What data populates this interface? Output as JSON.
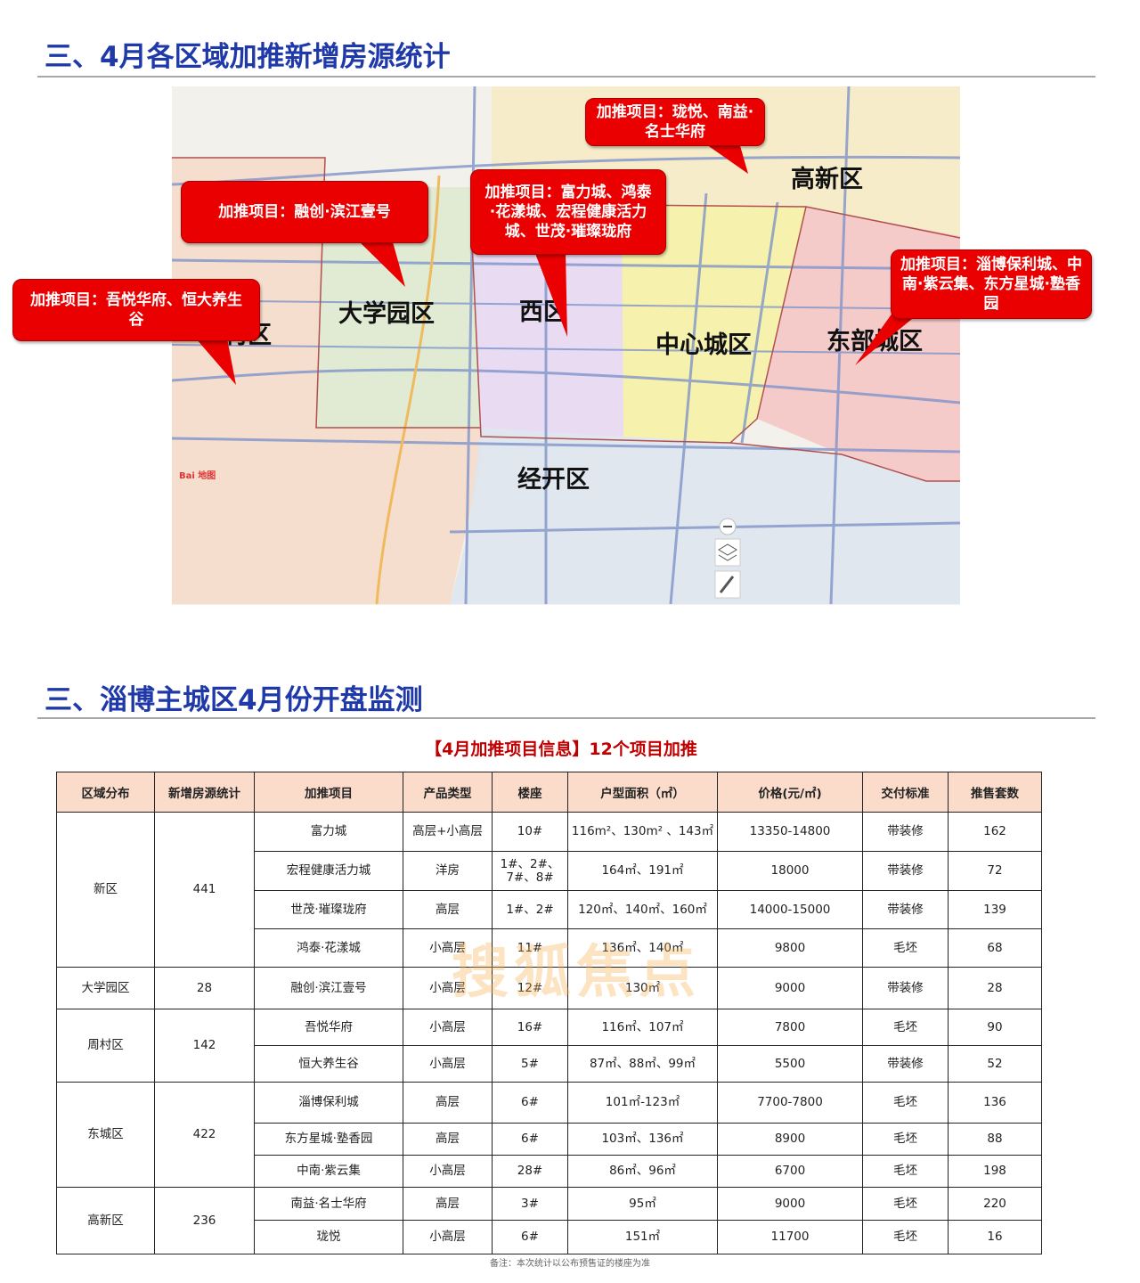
{
  "section1": {
    "title": "三、4月各区域加推新增房源统计"
  },
  "map": {
    "regions": [
      {
        "name": "高新区",
        "color": "#f7ebc6"
      },
      {
        "name": "大学园区",
        "color": "#dfead1"
      },
      {
        "name": "村区",
        "color": "#f5dccb"
      },
      {
        "name": "西区",
        "color": "#e8d9f3"
      },
      {
        "name": "中心城区",
        "color": "#f6f2a6"
      },
      {
        "name": "东部城区",
        "color": "#f5c6c6"
      },
      {
        "name": "经开区",
        "color": "#dfe5ee"
      }
    ],
    "callouts": [
      "加推项目：珑悦、南益·名士华府",
      "加推项目：融创·滨江壹号",
      "加推项目：富力城、鸿泰·花漾城、宏程健康活力城、世茂·璀璨珑府",
      "加推项目：吾悦华府、恒大养生谷",
      "加推项目：淄博保利城、中南·紫云集、东方星城·塾香园"
    ],
    "callout_color": "#ea0000",
    "controls": [
      "zoom-out-icon",
      "layers-icon",
      "brush-icon"
    ]
  },
  "section2": {
    "title": "三、淄博主城区4月份开盘监测"
  },
  "table": {
    "caption": "【4月加推项目信息】12个项目加推",
    "headers": [
      "区域分布",
      "新增房源统计",
      "加推项目",
      "产品类型",
      "楼座",
      "户型面积（㎡）",
      "价格(元/㎡)",
      "交付标准",
      "推售套数"
    ],
    "groups": [
      {
        "district": "新区",
        "total": "441",
        "rows": [
          [
            "富力城",
            "高层+小高层",
            "10#",
            "116m²、130m² 、143㎡",
            "13350-14800",
            "带装修",
            "162"
          ],
          [
            "宏程健康活力城",
            "洋房",
            "1#、2#、7#、8#",
            "164㎡、191㎡",
            "18000",
            "带装修",
            "72"
          ],
          [
            "世茂·璀璨珑府",
            "高层",
            "1#、2#",
            "120㎡、140㎡、160㎡",
            "14000-15000",
            "带装修",
            "139"
          ],
          [
            "鸿泰·花漾城",
            "小高层",
            "11#",
            "136㎡、140㎡",
            "9800",
            "毛坯",
            "68"
          ]
        ]
      },
      {
        "district": "大学园区",
        "total": "28",
        "rows": [
          [
            "融创·滨江壹号",
            "小高层",
            "12#",
            "130㎡",
            "9000",
            "带装修",
            "28"
          ]
        ]
      },
      {
        "district": "周村区",
        "total": "142",
        "rows": [
          [
            "吾悦华府",
            "小高层",
            "16#",
            "116㎡、107㎡",
            "7800",
            "毛坯",
            "90"
          ],
          [
            "恒大养生谷",
            "小高层",
            "5#",
            "87㎡、88㎡、99㎡",
            "5500",
            "带装修",
            "52"
          ]
        ]
      },
      {
        "district": "东城区",
        "total": "422",
        "rows": [
          [
            "淄博保利城",
            "高层",
            "6#",
            "101㎡-123㎡",
            "7700-7800",
            "毛坯",
            "136"
          ],
          [
            "东方星城·塾香园",
            "高层",
            "6#",
            "103㎡、136㎡",
            "8900",
            "毛坯",
            "88"
          ],
          [
            "中南·紫云集",
            "小高层",
            "28#",
            "86㎡、96㎡",
            "6700",
            "毛坯",
            "198"
          ]
        ]
      },
      {
        "district": "高新区",
        "total": "236",
        "rows": [
          [
            "南益·名士华府",
            "高层",
            "3#",
            "95㎡",
            "9000",
            "毛坯",
            "220"
          ],
          [
            "珑悦",
            "小高层",
            "6#",
            "151㎡",
            "11700",
            "毛坯",
            "16"
          ]
        ]
      }
    ],
    "header_color": "#fbdccb",
    "note": "备注：本次统计以公布预售证的楼座为准"
  },
  "watermark": "搜狐焦点"
}
